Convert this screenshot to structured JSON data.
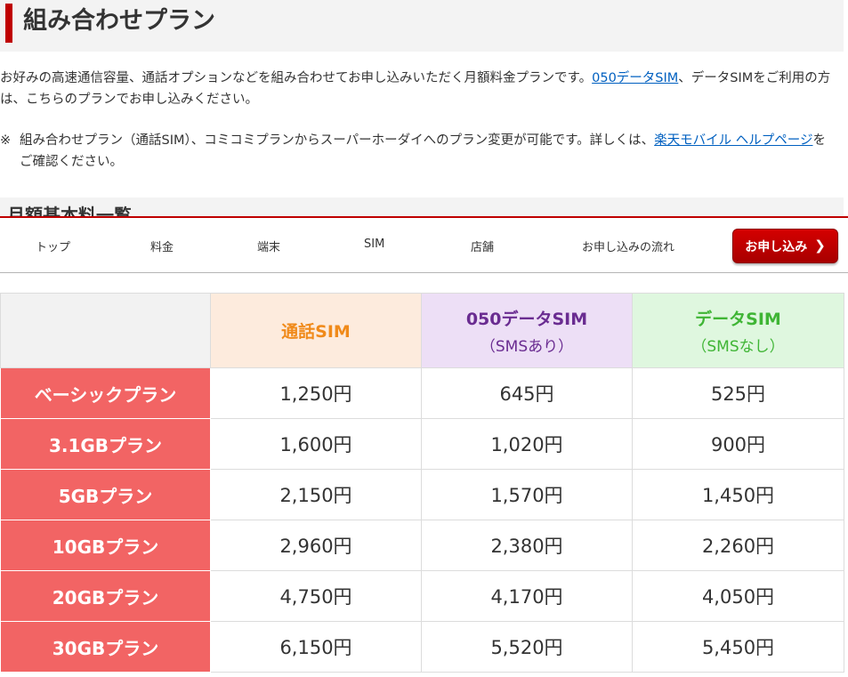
{
  "heading": {
    "title": "組み合わせプラン"
  },
  "intro": {
    "text_before": "お好みの高速通信容量、通話オプションなどを組み合わせてお申し込みいただく月額料金プランです。",
    "link_050": "050データSIM",
    "text_after": "、データSIMをご利用の方は、こちらのプランでお申し込みください。"
  },
  "note": {
    "mark": "※",
    "text_before": "組み合わせプラン（通話SIM）、コミコミプランからスーパーホーダイへのプラン変更が可能です。詳しくは、",
    "link_help": "楽天モバイル ヘルプページ",
    "text_after": "をご確認ください。"
  },
  "sub_section": {
    "title": "月額基本料一覧"
  },
  "nav": {
    "items": [
      {
        "label": "トップ"
      },
      {
        "label": "料金"
      },
      {
        "label": "端末"
      },
      {
        "label": "SIM"
      },
      {
        "label": "店舗"
      },
      {
        "label": "お申し込みの流れ"
      }
    ],
    "apply_label": "お申し込み",
    "apply_icon": "chevron-right-icon"
  },
  "price_table": {
    "columns": [
      {
        "title": "通話SIM",
        "sub": ""
      },
      {
        "title": "050データSIM",
        "sub": "（SMSあり）"
      },
      {
        "title": "データSIM",
        "sub": "（SMSなし）"
      }
    ],
    "rows": [
      {
        "plan": "ベーシックプラン",
        "values": [
          "1,250円",
          "645円",
          "525円"
        ]
      },
      {
        "plan": "3.1GBプラン",
        "values": [
          "1,600円",
          "1,020円",
          "900円"
        ]
      },
      {
        "plan": "5GBプラン",
        "values": [
          "2,150円",
          "1,570円",
          "1,450円"
        ]
      },
      {
        "plan": "10GBプラン",
        "values": [
          "2,960円",
          "2,380円",
          "2,260円"
        ]
      },
      {
        "plan": "20GBプラン",
        "values": [
          "4,750円",
          "4,170円",
          "4,050円"
        ]
      },
      {
        "plan": "30GBプラン",
        "values": [
          "6,150円",
          "5,520円",
          "5,450円"
        ]
      }
    ]
  },
  "colors": {
    "brand_red": "#bf0000",
    "row_label_bg": "#f26464",
    "voice_color": "#f08a1a",
    "data050_color": "#6a2c91",
    "data_color": "#3fb535",
    "link_color": "#0060c0"
  }
}
